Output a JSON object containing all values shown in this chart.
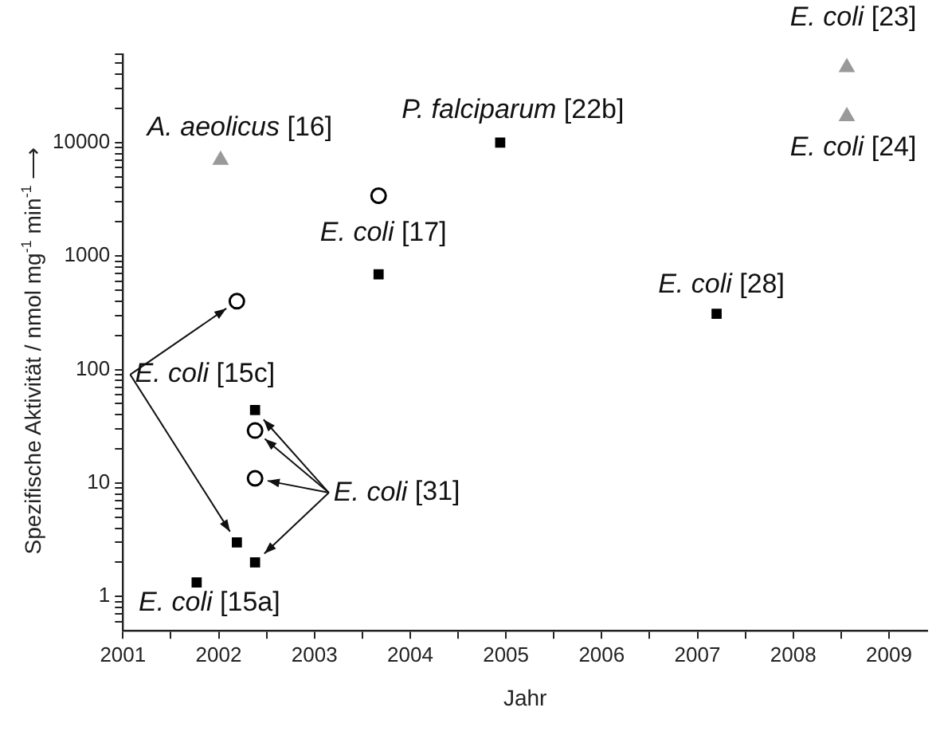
{
  "chart_data": {
    "type": "scatter",
    "xlabel": "Jahr",
    "ylabel": "Spezifische Aktivität / nmol mg$^{-1}$ min$^{-1}$ ⟶",
    "log": "y",
    "grid": false,
    "legend": false,
    "xlim": [
      2001,
      2009.4
    ],
    "ylim": [
      0.5,
      60000
    ],
    "xticks": [
      2001,
      {
        "value": 2001.5,
        "label": null
      },
      2002,
      {
        "value": 2002.5,
        "label": null
      },
      2003,
      {
        "value": 2003.5,
        "label": null
      },
      2004,
      {
        "value": 2004.5,
        "label": null
      },
      2005,
      {
        "value": 2005.5,
        "label": null
      },
      2006,
      {
        "value": 2006.5,
        "label": null
      },
      2007,
      {
        "value": 2007.5,
        "label": null
      },
      2008,
      {
        "value": 2008.5,
        "label": null
      },
      2009
    ],
    "yticks": [
      {
        "value": 0.6,
        "label": null
      },
      {
        "value": 0.7,
        "label": null
      },
      {
        "value": 0.8,
        "label": null
      },
      {
        "value": 0.9,
        "label": null
      },
      1,
      {
        "value": 2,
        "label": null
      },
      {
        "value": 3,
        "label": null
      },
      {
        "value": 4,
        "label": null
      },
      {
        "value": 5,
        "label": null
      },
      {
        "value": 6,
        "label": null
      },
      {
        "value": 7,
        "label": null
      },
      {
        "value": 8,
        "label": null
      },
      {
        "value": 9,
        "label": null
      },
      10,
      {
        "value": 20,
        "label": null
      },
      {
        "value": 30,
        "label": null
      },
      {
        "value": 40,
        "label": null
      },
      {
        "value": 50,
        "label": null
      },
      {
        "value": 60,
        "label": null
      },
      {
        "value": 70,
        "label": null
      },
      {
        "value": 80,
        "label": null
      },
      {
        "value": 90,
        "label": null
      },
      100,
      {
        "value": 200,
        "label": null
      },
      {
        "value": 300,
        "label": null
      },
      {
        "value": 400,
        "label": null
      },
      {
        "value": 500,
        "label": null
      },
      {
        "value": 600,
        "label": null
      },
      {
        "value": 700,
        "label": null
      },
      {
        "value": 800,
        "label": null
      },
      {
        "value": 900,
        "label": null
      },
      1000,
      {
        "value": 2000,
        "label": null
      },
      {
        "value": 3000,
        "label": null
      },
      {
        "value": 4000,
        "label": null
      },
      {
        "value": 5000,
        "label": null
      },
      {
        "value": 6000,
        "label": null
      },
      {
        "value": 7000,
        "label": null
      },
      {
        "value": 8000,
        "label": null
      },
      {
        "value": 9000,
        "label": null
      },
      10000,
      {
        "value": 20000,
        "label": null
      },
      {
        "value": 30000,
        "label": null
      },
      {
        "value": 40000,
        "label": null
      },
      {
        "value": 50000,
        "label": null
      },
      {
        "value": 60000,
        "label": null
      }
    ],
    "series": [
      {
        "marker": "square",
        "color": "#000000",
        "x": [
          2001.77,
          2002.19,
          2002.38,
          2002.38,
          2003.67,
          2004.94,
          2007.2
        ],
        "values": [
          1.33,
          3.0,
          2.0,
          44,
          690,
          10000,
          310
        ]
      },
      {
        "marker": "circle",
        "color": "#000000",
        "x": [
          2002.19,
          2002.38,
          2002.38,
          2003.67
        ],
        "values": [
          400,
          29,
          11,
          3400
        ]
      },
      {
        "marker": "triangle",
        "color": "#999999",
        "x": [
          2002.02,
          2008.56,
          2008.56
        ],
        "values": [
          7000,
          46000,
          17000
        ]
      }
    ],
    "annotations": [
      {
        "text": "A. aeolicus [16]",
        "x": 2002.02,
        "y": 7000
      },
      {
        "text": "P. falciparum [22b]",
        "x": 2004.94,
        "y": 10000
      },
      {
        "text": "E. coli [23]",
        "x": 2008.56,
        "y": 46000
      },
      {
        "text": "E. coli [24]",
        "x": 2008.56,
        "y": 17000
      },
      {
        "text": "E. coli [17]",
        "x": 2003.67,
        "y": 690
      },
      {
        "text": "E. coli [28]",
        "x": 2007.2,
        "y": 310
      },
      {
        "text": "E. coli [15c]",
        "x": 2002.19,
        "y": 400
      },
      {
        "text": "E. coli [31]",
        "x": 2002.38,
        "y": 11
      },
      {
        "text": "E. coli [15a]",
        "x": 2001.77,
        "y": 1.33
      }
    ]
  }
}
